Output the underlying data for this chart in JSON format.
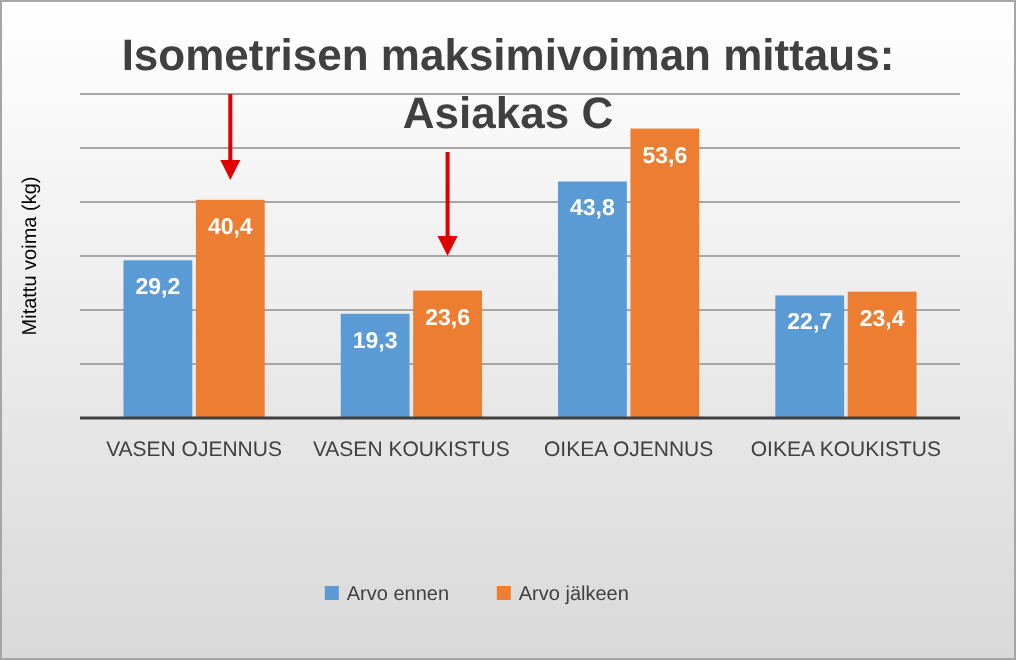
{
  "chart_data": {
    "type": "bar",
    "title": "Isometrisen maksimivoiman mittaus: Asiakas C",
    "ylabel": "Mitattu voima (kg)",
    "categories": [
      "VASEN OJENNUS",
      "VASEN KOUKISTUS",
      "OIKEA OJENNUS",
      "OIKEA KOUKISTUS"
    ],
    "series": [
      {
        "name": "Arvo ennen",
        "color": "#5b9bd5",
        "values": [
          29.2,
          19.3,
          43.8,
          22.7
        ],
        "value_labels": [
          "29,2",
          "19,3",
          "43,8",
          "22,7"
        ]
      },
      {
        "name": "Arvo jälkeen",
        "color": "#ed7d31",
        "values": [
          40.4,
          23.6,
          53.6,
          23.4
        ],
        "value_labels": [
          "40,4",
          "23,6",
          "53,6",
          "23,4"
        ]
      }
    ],
    "ylim": [
      0,
      60
    ],
    "yticks": [
      {
        "value": 0,
        "label": null
      },
      {
        "value": 10,
        "label": null
      },
      {
        "value": 20,
        "label": null
      },
      {
        "value": 30,
        "label": null
      },
      {
        "value": 40,
        "label": null
      },
      {
        "value": 50,
        "label": null
      },
      {
        "value": 60,
        "label": null
      }
    ],
    "grid": true,
    "legend": "bottom",
    "tick_labels": "x"
  }
}
